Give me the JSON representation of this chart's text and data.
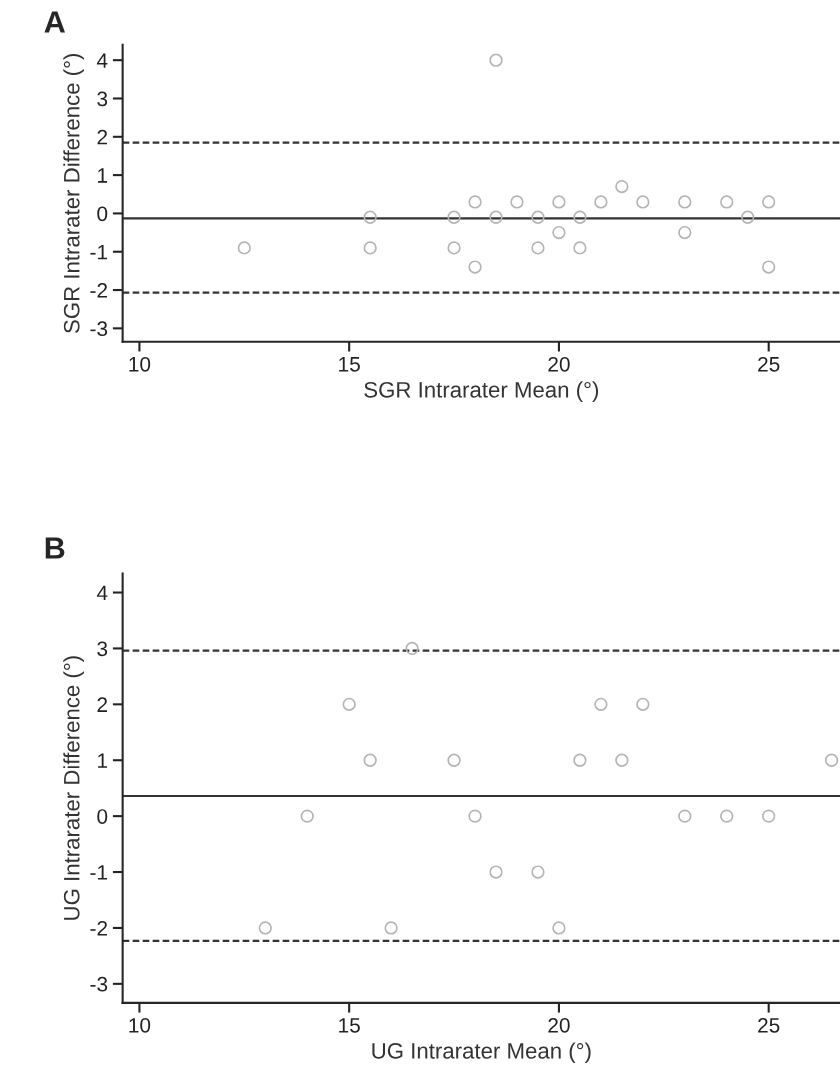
{
  "chart_data": [
    {
      "type": "scatter",
      "xlabel": "SGR Intrarater Mean (°)",
      "ylabel": "SGR Intrarater Difference (°)",
      "annotations": [
        "A"
      ],
      "xlim": [
        9.6,
        26.7
      ],
      "xticks": [
        10,
        15,
        20,
        25
      ],
      "ylim": [
        -3.35,
        4.4
      ],
      "yticks": [
        -3,
        -2,
        -1,
        0,
        1,
        2,
        3,
        4
      ],
      "grid": false,
      "marker": "circle",
      "ref_lines": [
        {
          "axis": "y",
          "value": 1.85,
          "line_style": "dashed",
          "color": "#333333"
        },
        {
          "axis": "y",
          "value": -0.13,
          "line_style": "solid",
          "color": "#333333"
        },
        {
          "axis": "y",
          "value": -2.07,
          "line_style": "dashed",
          "color": "#333333"
        }
      ],
      "series": [
        {
          "color": "#b4b4b4",
          "x": [
            12.5,
            15.5,
            15.5,
            17.5,
            17.5,
            18,
            18,
            18.5,
            18.5,
            19,
            19.5,
            19.5,
            20,
            20,
            20.5,
            20.5,
            21,
            21.5,
            22,
            23,
            23,
            24,
            24.5,
            25,
            25
          ],
          "values": [
            -0.9,
            -0.1,
            -0.9,
            -0.1,
            -0.9,
            0.3,
            -1.4,
            4,
            -0.1,
            0.3,
            -0.1,
            -0.9,
            0.3,
            -0.5,
            -0.1,
            -0.9,
            0.3,
            0.7,
            0.3,
            0.3,
            -0.5,
            0.3,
            -0.1,
            0.3,
            -1.4
          ]
        }
      ]
    },
    {
      "type": "scatter",
      "xlabel": "UG Intrarater Mean (°)",
      "ylabel": "UG Intrarater Difference (°)",
      "annotations": [
        "B"
      ],
      "xlim": [
        9.6,
        26.7
      ],
      "xticks": [
        10,
        15,
        20,
        25
      ],
      "ylim": [
        -3.34,
        4.34
      ],
      "yticks": [
        -3,
        -2,
        -1,
        0,
        1,
        2,
        3,
        4
      ],
      "grid": false,
      "marker": "circle",
      "ref_lines": [
        {
          "axis": "y",
          "value": 2.96,
          "line_style": "dashed",
          "color": "#333333"
        },
        {
          "axis": "y",
          "value": 0.36,
          "line_style": "solid",
          "color": "#333333"
        },
        {
          "axis": "y",
          "value": -2.23,
          "line_style": "dashed",
          "color": "#333333"
        }
      ],
      "series": [
        {
          "color": "#b4b4b4",
          "x": [
            13,
            14,
            15,
            15.5,
            16,
            16.5,
            17.5,
            18,
            18.5,
            19.5,
            20,
            20.5,
            21,
            21.5,
            22,
            23,
            24,
            25,
            26.5
          ],
          "values": [
            -2,
            0,
            2,
            1,
            -2,
            3,
            1,
            0,
            -1,
            -1,
            -2,
            1,
            2,
            1,
            2,
            0,
            0,
            0,
            1
          ]
        }
      ]
    }
  ]
}
